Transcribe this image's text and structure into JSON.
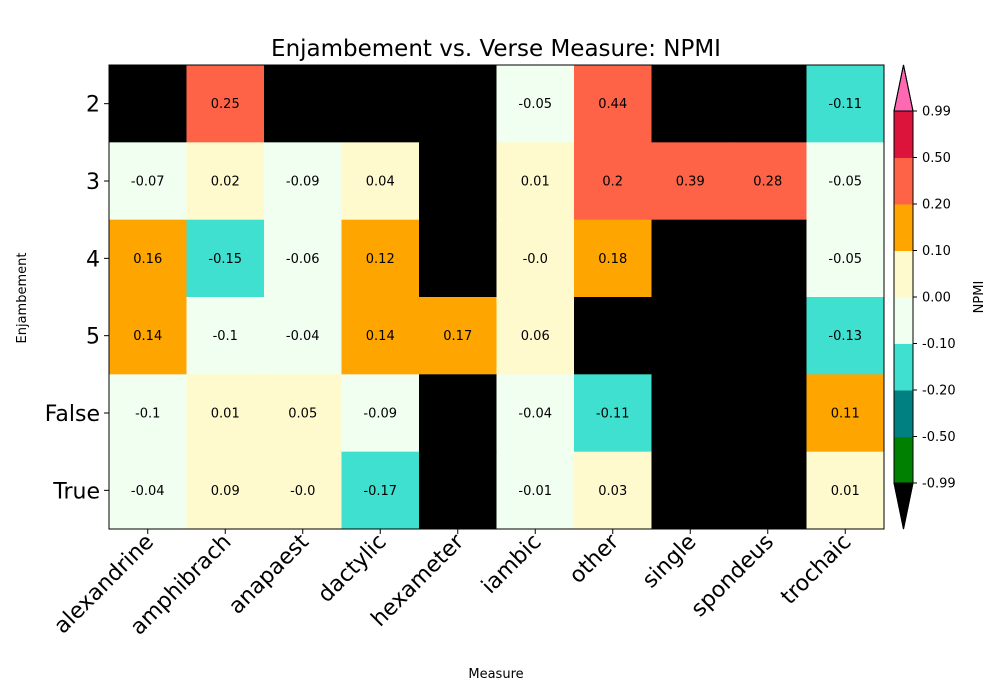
{
  "chart_data": {
    "type": "heatmap",
    "title": "Enjambement vs. Verse Measure: NPMI",
    "xlabel": "Measure",
    "ylabel": "Enjambement",
    "x_categories": [
      "alexandrine",
      "amphibrach",
      "anapaest",
      "dactylic",
      "hexameter",
      "iambic",
      "other",
      "single",
      "spondeus",
      "trochaic"
    ],
    "y_categories": [
      "2",
      "3",
      "4",
      "5",
      "False",
      "True"
    ],
    "values": [
      [
        null,
        0.25,
        null,
        null,
        null,
        -0.05,
        0.44,
        null,
        null,
        -0.11
      ],
      [
        -0.07,
        0.02,
        -0.09,
        0.04,
        null,
        0.01,
        0.2,
        0.39,
        0.28,
        -0.05
      ],
      [
        0.16,
        -0.15,
        -0.06,
        0.12,
        null,
        -0.0,
        0.18,
        null,
        null,
        -0.05
      ],
      [
        0.14,
        -0.1,
        -0.04,
        0.14,
        0.17,
        0.06,
        null,
        null,
        null,
        -0.13
      ],
      [
        -0.1,
        0.01,
        0.05,
        -0.09,
        null,
        -0.04,
        -0.11,
        null,
        null,
        0.11
      ],
      [
        -0.04,
        0.09,
        -0.0,
        -0.17,
        null,
        -0.01,
        0.03,
        null,
        null,
        0.01
      ]
    ],
    "labels": [
      [
        "",
        "0.25",
        "",
        "",
        "",
        "-0.05",
        "0.44",
        "",
        "",
        "-0.11"
      ],
      [
        "-0.07",
        "0.02",
        "-0.09",
        "0.04",
        "",
        "0.01",
        "0.2",
        "0.39",
        "0.28",
        "-0.05"
      ],
      [
        "0.16",
        "-0.15",
        "-0.06",
        "0.12",
        "",
        "-0.0",
        "0.18",
        "",
        "",
        "-0.05"
      ],
      [
        "0.14",
        "-0.1",
        "-0.04",
        "0.14",
        "0.17",
        "0.06",
        "",
        "",
        "",
        "-0.13"
      ],
      [
        "-0.1",
        "0.01",
        "0.05",
        "-0.09",
        "",
        "-0.04",
        "-0.11",
        "",
        "",
        "0.11"
      ],
      [
        "-0.04",
        "0.09",
        "-0.0",
        "-0.17",
        "",
        "-0.01",
        "0.03",
        "",
        "",
        "0.01"
      ]
    ],
    "missing_color": "#000000",
    "colorbar": {
      "label": "NPMI",
      "boundaries": [
        -0.99,
        -0.5,
        -0.2,
        -0.1,
        0.0,
        0.1,
        0.2,
        0.5,
        0.99
      ],
      "tick_labels": [
        "-0.99",
        "-0.50",
        "-0.20",
        "-0.10",
        "0.00",
        "0.10",
        "0.20",
        "0.50",
        "0.99"
      ],
      "colors": [
        "#008000",
        "#008080",
        "#40e0d0",
        "#f0fff0",
        "#fffacd",
        "#ffa500",
        "#ff6347",
        "#dc143c"
      ],
      "under_color": "#000000",
      "over_color": "#ff69b4",
      "position": "right"
    }
  }
}
